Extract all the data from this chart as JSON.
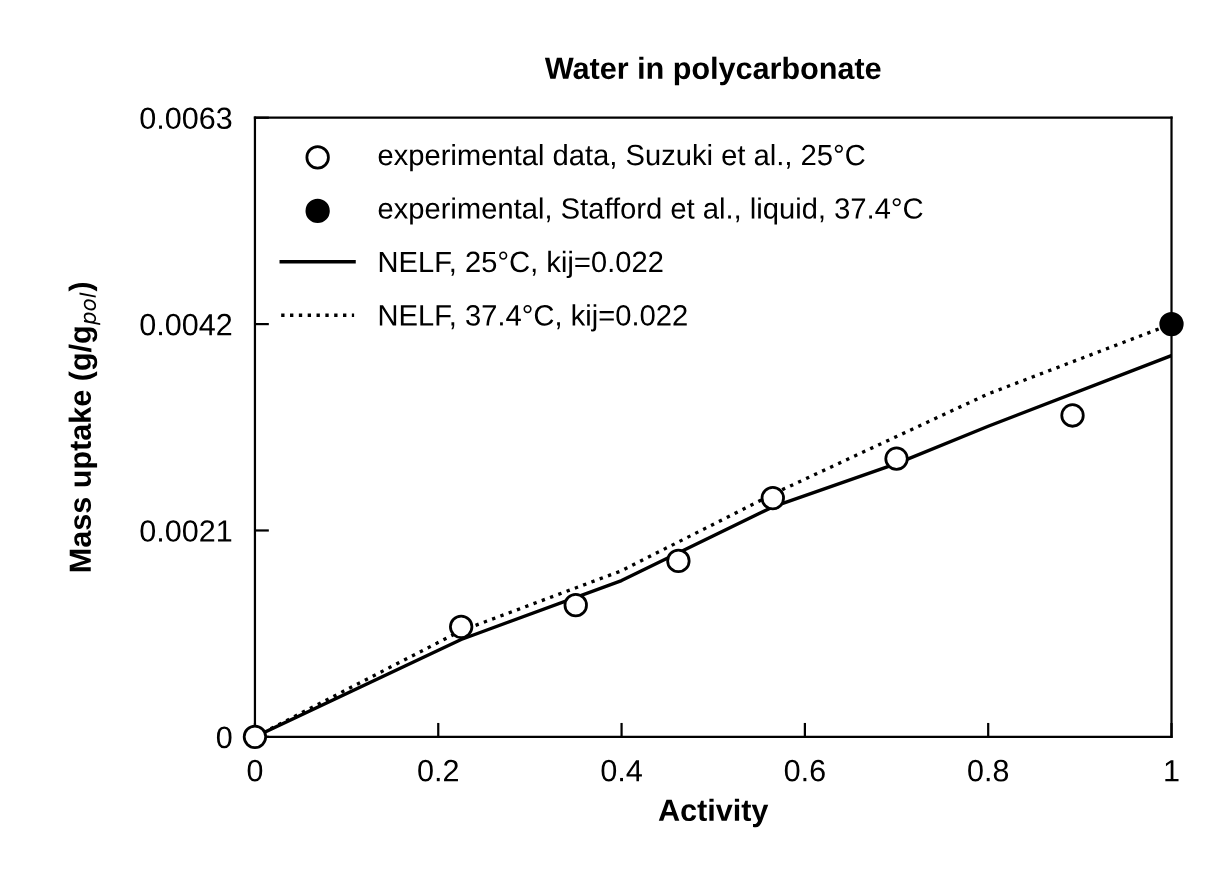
{
  "chart_data": {
    "type": "scatter",
    "title": "Water in polycarbonate",
    "xlabel": "Activity",
    "ylabel": "Mass uptake (g/g$_{pol}$)",
    "xlim": [
      0,
      1
    ],
    "ylim": [
      0,
      0.0063
    ],
    "xticks": [
      0,
      0.2,
      0.4,
      0.6,
      0.8,
      1
    ],
    "yticks": [
      0,
      0.0021,
      0.0042,
      0.0063
    ],
    "grid": false,
    "legend": "top left",
    "series": [
      {
        "name": "experimental data, Suzuki et al., 25°C",
        "marker": "circle",
        "color": "#ffffff",
        "x": [
          0,
          0.225,
          0.35,
          0.462,
          0.565,
          0.7,
          0.892
        ],
        "values": [
          0,
          0.00112,
          0.00134,
          0.00179,
          0.00243,
          0.00283,
          0.00327
        ]
      },
      {
        "name": "experimental, Stafford et al., liquid, 37.4°C",
        "marker": "circle",
        "color": "#000000",
        "x": [
          1
        ],
        "values": [
          0.0042
        ]
      },
      {
        "name": "NELF, 25°C, kij=0.022",
        "type": "line",
        "line_style": "solid",
        "color": "#000000",
        "x": [
          0,
          0.225,
          0.4,
          0.565,
          0.7,
          0.8,
          1
        ],
        "values": [
          0,
          0.00099,
          0.00159,
          0.00234,
          0.00278,
          0.00316,
          0.00388
        ]
      },
      {
        "name": "NELF, 37.4°C, kij=0.022",
        "type": "line",
        "line_style": "dotted",
        "color": "#000000",
        "x": [
          0,
          0.225,
          0.4,
          0.565,
          0.8,
          1
        ],
        "values": [
          0,
          0.00108,
          0.00169,
          0.00247,
          0.00349,
          0.0042
        ]
      }
    ]
  }
}
